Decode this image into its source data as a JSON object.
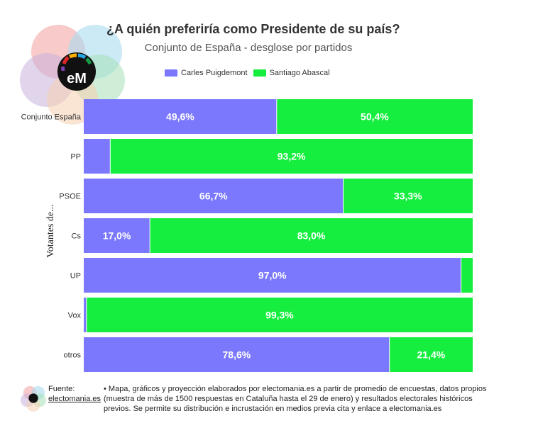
{
  "header": {
    "title": "¿A quién preferiría como Presidente de su país?",
    "subtitle": "Conjunto de España - desglose por partidos"
  },
  "brand": {
    "logo_text": "eM",
    "colors": [
      "#f4a6a6",
      "#a8dcf0",
      "#c9b3dd",
      "#a8e0b8",
      "#f6d0b0"
    ]
  },
  "footer": {
    "source_label": "Fuente:",
    "source_link": "electomania.es",
    "note": "• Mapa, gráficos y proyección elaborados por electomania.es a partir de promedio de encuestas, datos propios (muestra de más de 1500 respuestas en Cataluña hasta el 29 de enero) y resultados electorales históricos previos. Se permite su distribución e incrustación en medios previa cita y enlace a electomania.es"
  },
  "chart_data": {
    "type": "bar",
    "orientation": "horizontal",
    "stacked": true,
    "normalized": true,
    "ylabel": "Votantes de...",
    "categories": [
      "Conjunto España",
      "PP",
      "PSOE",
      "Cs",
      "UP",
      "Vox",
      "otros"
    ],
    "series": [
      {
        "name": "Carles Puigdemont",
        "color": "#7b78fe",
        "values": [
          49.6,
          6.8,
          66.7,
          17.0,
          97.0,
          0.7,
          78.6
        ],
        "labels": [
          "49,6%",
          "",
          "66,7%",
          "17,0%",
          "97,0%",
          "",
          "78,6%"
        ]
      },
      {
        "name": "Santiago Abascal",
        "color": "#16ee3f",
        "values": [
          50.4,
          93.2,
          33.3,
          83.0,
          3.0,
          99.3,
          21.4
        ],
        "labels": [
          "50,4%",
          "93,2%",
          "33,3%",
          "83,0%",
          "",
          "99,3%",
          "21,4%"
        ]
      }
    ],
    "xlim": [
      0,
      100
    ],
    "legend_position": "top",
    "grid": false
  }
}
